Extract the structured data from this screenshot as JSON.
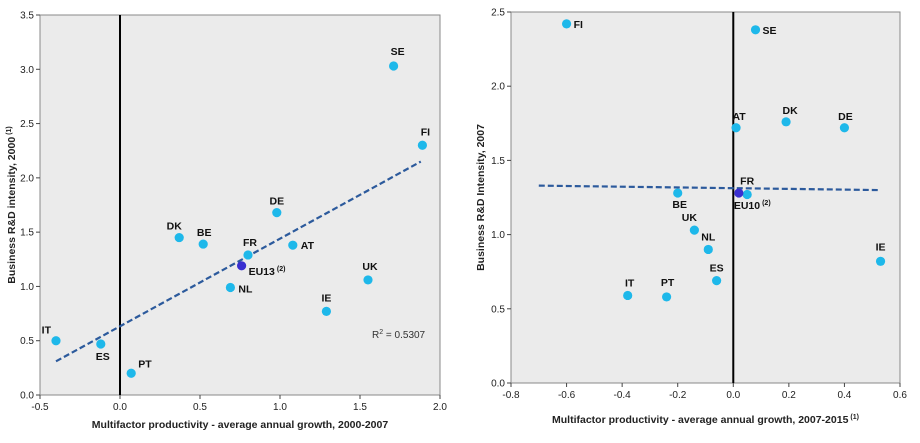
{
  "chart_data": [
    {
      "type": "scatter",
      "xlabel": "Multifactor productivity - average annual growth, 2000-2007",
      "ylabel": "Business R&D intensity, 2000",
      "ylabel_sup": "(1)",
      "xlim": [
        -0.5,
        2.0
      ],
      "ylim": [
        0.0,
        3.5
      ],
      "xticks": [
        -0.5,
        0.0,
        0.5,
        1.0,
        1.5,
        2.0
      ],
      "xtick_labels": [
        "-0.5",
        "0.0",
        "0.5",
        "1.0",
        "1.5",
        "2.0"
      ],
      "yticks": [
        0.0,
        0.5,
        1.0,
        1.5,
        2.0,
        2.5,
        3.0,
        3.5
      ],
      "ytick_labels": [
        "0.0",
        "0.5",
        "1.0",
        "1.5",
        "2.0",
        "2.5",
        "3.0",
        "3.5"
      ],
      "annotation": "R",
      "annotation_sup": "2",
      "annotation_rest": " = 0.5307",
      "trendline": [
        [
          -0.4,
          0.31
        ],
        [
          1.88,
          2.15
        ]
      ],
      "colors": {
        "point": "#1eb8ea",
        "highlight": "#3a2fd0",
        "trend": "#2c5a9c",
        "plot_bg": "#ebebeb"
      },
      "points": [
        {
          "label": "IT",
          "x": -0.4,
          "y": 0.5
        },
        {
          "label": "ES",
          "x": -0.12,
          "y": 0.47
        },
        {
          "label": "PT",
          "x": 0.07,
          "y": 0.2
        },
        {
          "label": "DK",
          "x": 0.37,
          "y": 1.45
        },
        {
          "label": "BE",
          "x": 0.52,
          "y": 1.39
        },
        {
          "label": "NL",
          "x": 0.69,
          "y": 0.99
        },
        {
          "label": "FR",
          "x": 0.8,
          "y": 1.29
        },
        {
          "label": "EU13",
          "label_sup": "(2)",
          "x": 0.76,
          "y": 1.19,
          "highlight": true
        },
        {
          "label": "DE",
          "x": 0.98,
          "y": 1.68
        },
        {
          "label": "AT",
          "x": 1.08,
          "y": 1.38
        },
        {
          "label": "IE",
          "x": 1.29,
          "y": 0.77
        },
        {
          "label": "UK",
          "x": 1.55,
          "y": 1.06
        },
        {
          "label": "SE",
          "x": 1.71,
          "y": 3.03
        },
        {
          "label": "FI",
          "x": 1.89,
          "y": 2.3
        }
      ]
    },
    {
      "type": "scatter",
      "xlabel": "Multifactor productivity - average annual growth, 2007-2015",
      "xlabel_sup": "(1)",
      "ylabel": "Business R&D Intensity, 2007",
      "xlim": [
        -0.8,
        0.6
      ],
      "ylim": [
        0.0,
        2.5
      ],
      "xticks": [
        -0.8,
        -0.6,
        -0.4,
        -0.2,
        0.0,
        0.2,
        0.4,
        0.6
      ],
      "xtick_labels": [
        "-0.8",
        "-0.6",
        "-0.4",
        "-0.2",
        "0.0",
        "0.2",
        "0.4",
        "0.6"
      ],
      "yticks": [
        0.0,
        0.5,
        1.0,
        1.5,
        2.0,
        2.5
      ],
      "ytick_labels": [
        "0.0",
        "0.5",
        "1.0",
        "1.5",
        "2.0",
        "2.5"
      ],
      "trendline": [
        [
          -0.7,
          1.33
        ],
        [
          0.53,
          1.3
        ]
      ],
      "colors": {
        "point": "#1eb8ea",
        "highlight": "#3a2fd0",
        "trend": "#2c5a9c",
        "plot_bg": "#ebebeb"
      },
      "points": [
        {
          "label": "FI",
          "x": -0.6,
          "y": 2.42
        },
        {
          "label": "SE",
          "x": 0.08,
          "y": 2.38
        },
        {
          "label": "AT",
          "x": 0.01,
          "y": 1.72
        },
        {
          "label": "DK",
          "x": 0.19,
          "y": 1.76
        },
        {
          "label": "DE",
          "x": 0.4,
          "y": 1.72
        },
        {
          "label": "BE",
          "x": -0.2,
          "y": 1.28
        },
        {
          "label": "FR",
          "x": 0.05,
          "y": 1.27
        },
        {
          "label": "EU10",
          "label_sup": "(2)",
          "x": 0.02,
          "y": 1.28,
          "highlight": true
        },
        {
          "label": "UK",
          "x": -0.14,
          "y": 1.03
        },
        {
          "label": "NL",
          "x": -0.09,
          "y": 0.9
        },
        {
          "label": "ES",
          "x": -0.06,
          "y": 0.69
        },
        {
          "label": "IT",
          "x": -0.38,
          "y": 0.59
        },
        {
          "label": "PT",
          "x": -0.24,
          "y": 0.58
        },
        {
          "label": "IE",
          "x": 0.53,
          "y": 0.82
        }
      ]
    }
  ]
}
